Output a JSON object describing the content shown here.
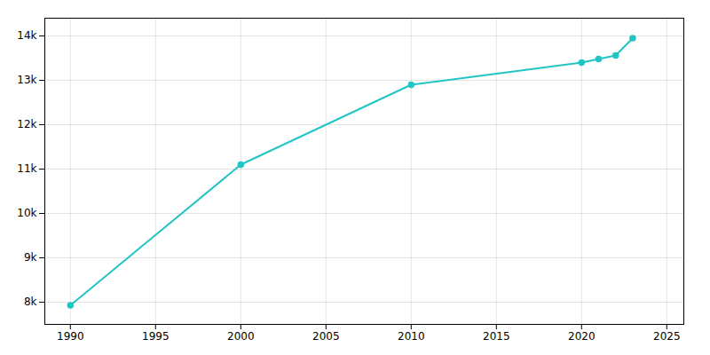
{
  "chart_data": {
    "type": "line",
    "x": [
      1990,
      2000,
      2010,
      2020,
      2021,
      2022,
      2023
    ],
    "values": [
      7930,
      11100,
      12900,
      13400,
      13480,
      13560,
      13950
    ],
    "color": "#22c4c4",
    "marker": "circle",
    "xlim": [
      1988.5,
      2026
    ],
    "ylim": [
      7500,
      14400
    ],
    "xticks": [
      1990,
      1995,
      2000,
      2005,
      2010,
      2015,
      2020,
      2025
    ],
    "yticks": [
      {
        "value": 8000,
        "label": "8k"
      },
      {
        "value": 9000,
        "label": "9k"
      },
      {
        "value": 10000,
        "label": "10k"
      },
      {
        "value": 11000,
        "label": "11k"
      },
      {
        "value": 12000,
        "label": "12k"
      },
      {
        "value": 13000,
        "label": "13k"
      },
      {
        "value": 14000,
        "label": "14k"
      }
    ],
    "grid": true
  }
}
